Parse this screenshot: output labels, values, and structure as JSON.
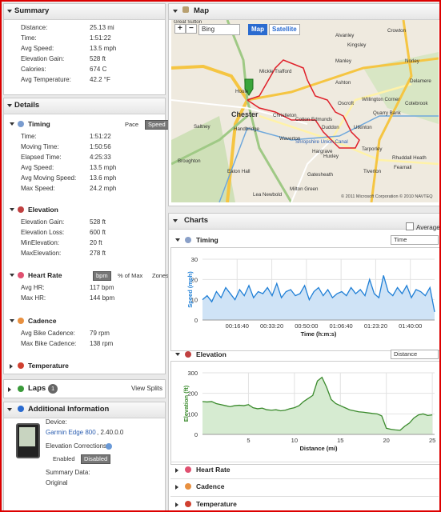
{
  "summary": {
    "title": "Summary",
    "rows": [
      [
        "Distance:",
        "25.13 mi"
      ],
      [
        "Time:",
        "1:51:22"
      ],
      [
        "Avg Speed:",
        "13.5 mph"
      ],
      [
        "Elevation Gain:",
        "528 ft"
      ],
      [
        "Calories:",
        "674 C"
      ],
      [
        "Avg Temperature:",
        "42.2 °F"
      ]
    ]
  },
  "details": {
    "title": "Details",
    "groups": [
      {
        "title": "Timing",
        "options": [
          "Pace",
          "Speed"
        ],
        "selected_index": 1,
        "rows": [
          [
            "Time:",
            "1:51:22"
          ],
          [
            "Moving Time:",
            "1:50:56"
          ],
          [
            "Elapsed Time:",
            "4:25:33"
          ],
          [
            "Avg Speed:",
            "13.5 mph"
          ],
          [
            "Avg Moving Speed:",
            "13.6 mph"
          ],
          [
            "Max Speed:",
            "24.2 mph"
          ]
        ]
      },
      {
        "title": "Elevation",
        "rows": [
          [
            "Elevation Gain:",
            "528 ft"
          ],
          [
            "Elevation Loss:",
            "600 ft"
          ],
          [
            "MinElevation:",
            "20 ft"
          ],
          [
            "MaxElevation:",
            "278 ft"
          ]
        ]
      },
      {
        "title": "Heart Rate",
        "options": [
          "bpm",
          "% of Max",
          "Zones"
        ],
        "selected_index": 0,
        "rows": [
          [
            "Avg HR:",
            "117 bpm"
          ],
          [
            "Max HR:",
            "144 bpm"
          ]
        ]
      },
      {
        "title": "Cadence",
        "rows": [
          [
            "Avg Bike Cadence:",
            "79 rpm"
          ],
          [
            "Max Bike Cadence:",
            "138 rpm"
          ]
        ]
      },
      {
        "title": "Temperature",
        "rows": []
      }
    ]
  },
  "laps": {
    "title": "Laps",
    "count": "1",
    "link": "View Splits"
  },
  "additional": {
    "title": "Additional Information",
    "device_label": "Device:",
    "device": "Garmin Edge 800",
    "version": ", 2.40.0.0",
    "corrections_label": "Elevation Corrections",
    "corrections_options": [
      "Enabled",
      "Disabled"
    ],
    "corrections_selected": 1,
    "summary_label": "Summary Data:",
    "summary_value": "Original"
  },
  "map": {
    "title": "Map",
    "zoom_in": "+",
    "zoom_out": "−",
    "provider": "Bing",
    "modes": [
      "Map",
      "Satellite"
    ],
    "mode_selected": 0,
    "copyright": "© 2011 Microsoft Corporation  © 2010 NAVTEQ",
    "places": [
      "Great Sutton",
      "Alvanley",
      "Crowton",
      "Kingsley",
      "Norley",
      "Manley",
      "Delamere",
      "Mickle Trafford",
      "Ashton",
      "Oscroft",
      "Willington Corner",
      "Hoole",
      "Chester",
      "Handbridge",
      "Christleton",
      "Cotton Edmunds",
      "Duddon",
      "Utkinton",
      "Quarry Bank",
      "Cotebrook",
      "Shropshire Union Canal",
      "Huxley",
      "Hargrave",
      "Waverton",
      "Eaton Hall",
      "Tiverton",
      "Gatesheath",
      "Milton Green",
      "Rhuddall Heath",
      "Fearnall",
      "Saltney",
      "Broughton",
      "Tarporley",
      "Lea Newbold"
    ]
  },
  "charts": {
    "title": "Charts",
    "average_label": "Average",
    "panels": [
      {
        "title": "Timing",
        "selector": "Time",
        "chart": {
          "type": "area",
          "ylabel": "Speed (mph)",
          "xlabel": "Time (h:m:s)",
          "color": "#1f7fd6",
          "fill_color": "#cfe3f6",
          "xlim": [
            0,
            6700
          ],
          "ylim": [
            0,
            30
          ],
          "yticks": [
            0,
            10,
            20,
            30
          ],
          "xticks": [
            {
              "value": 1000,
              "label": "00:16:40"
            },
            {
              "value": 2000,
              "label": "00:33:20"
            },
            {
              "value": 3000,
              "label": "00:50:00"
            },
            {
              "value": 4000,
              "label": "01:06:40"
            },
            {
              "value": 5000,
              "label": "01:23:20"
            },
            {
              "value": 6000,
              "label": "01:40:00"
            }
          ],
          "x": [
            0,
            134,
            268,
            402,
            536,
            670,
            804,
            938,
            1072,
            1206,
            1340,
            1474,
            1608,
            1742,
            1876,
            2010,
            2144,
            2278,
            2412,
            2546,
            2680,
            2814,
            2948,
            3082,
            3216,
            3350,
            3484,
            3618,
            3752,
            3886,
            4020,
            4154,
            4288,
            4422,
            4556,
            4690,
            4824,
            4958,
            5092,
            5226,
            5360,
            5494,
            5628,
            5762,
            5896,
            6030,
            6164,
            6298,
            6432,
            6566,
            6700
          ],
          "values": [
            10,
            12,
            9,
            14,
            11,
            16,
            13,
            10,
            15,
            12,
            17,
            11,
            14,
            13,
            16,
            12,
            18,
            11,
            14,
            15,
            12,
            13,
            17,
            10,
            14,
            16,
            12,
            15,
            11,
            13,
            14,
            12,
            16,
            13,
            15,
            12,
            20,
            13,
            11,
            22,
            14,
            12,
            16,
            13,
            17,
            11,
            15,
            14,
            12,
            16,
            4
          ]
        }
      },
      {
        "title": "Elevation",
        "selector": "Distance",
        "chart": {
          "type": "area",
          "ylabel": "Elevation (ft)",
          "xlabel": "Distance (mi)",
          "color": "#3a8a2c",
          "fill_color": "#d6ebd1",
          "xlim": [
            0,
            25.25
          ],
          "ylim": [
            0,
            300
          ],
          "yticks": [
            0,
            100,
            200,
            300
          ],
          "xticks": [
            5,
            10,
            15,
            20,
            25
          ],
          "x": [
            0,
            0.5,
            1,
            1.5,
            2,
            2.5,
            3,
            3.5,
            4,
            4.5,
            5,
            5.5,
            6,
            6.5,
            7,
            7.5,
            8,
            8.5,
            9,
            9.5,
            10,
            10.5,
            11,
            11.5,
            12,
            12.5,
            13,
            13.5,
            14,
            14.5,
            15,
            15.5,
            16,
            16.5,
            17,
            17.5,
            18,
            18.5,
            19,
            19.5,
            20,
            20.5,
            21,
            21.5,
            22,
            22.5,
            23,
            23.5,
            24,
            24.5,
            25
          ],
          "values": [
            160,
            158,
            160,
            150,
            145,
            140,
            135,
            140,
            142,
            140,
            145,
            130,
            125,
            128,
            120,
            118,
            120,
            115,
            118,
            125,
            130,
            140,
            160,
            175,
            190,
            260,
            278,
            230,
            170,
            150,
            140,
            130,
            120,
            115,
            110,
            108,
            105,
            102,
            100,
            90,
            30,
            25,
            22,
            20,
            40,
            55,
            80,
            95,
            100,
            92,
            95
          ]
        }
      }
    ],
    "collapsed": [
      "Heart Rate",
      "Cadence",
      "Temperature"
    ]
  }
}
